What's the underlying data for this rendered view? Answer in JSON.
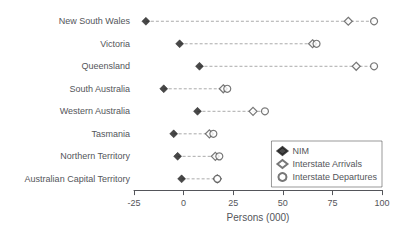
{
  "chart_data": {
    "type": "dot",
    "categories": [
      "New South Wales",
      "Victoria",
      "Queensland",
      "South Australia",
      "Western Australia",
      "Tasmania",
      "Northern Territory",
      "Australian Capital Territory"
    ],
    "orientation": "horizontal",
    "series": [
      {
        "name": "NIM",
        "color": "#1a1a1a",
        "marker": "diamond",
        "values": [
          -19,
          -2,
          8,
          -10,
          7,
          -5,
          -3,
          -1
        ]
      },
      {
        "name": "Interstate Arrivals",
        "color": "#555555",
        "marker": "open diamond",
        "values": [
          83,
          65,
          87,
          20,
          35,
          13,
          16,
          17
        ]
      },
      {
        "name": "Interstate Departures",
        "color": "#555555",
        "marker": "open circle",
        "values": [
          96,
          67,
          96,
          22,
          41,
          15,
          18,
          17
        ]
      }
    ],
    "xlabel": "Persons (000)",
    "xlim": [
      -25,
      100
    ],
    "xticks": [
      -25,
      0,
      25,
      50,
      75,
      100
    ],
    "grid": false,
    "legend": "lower right"
  }
}
